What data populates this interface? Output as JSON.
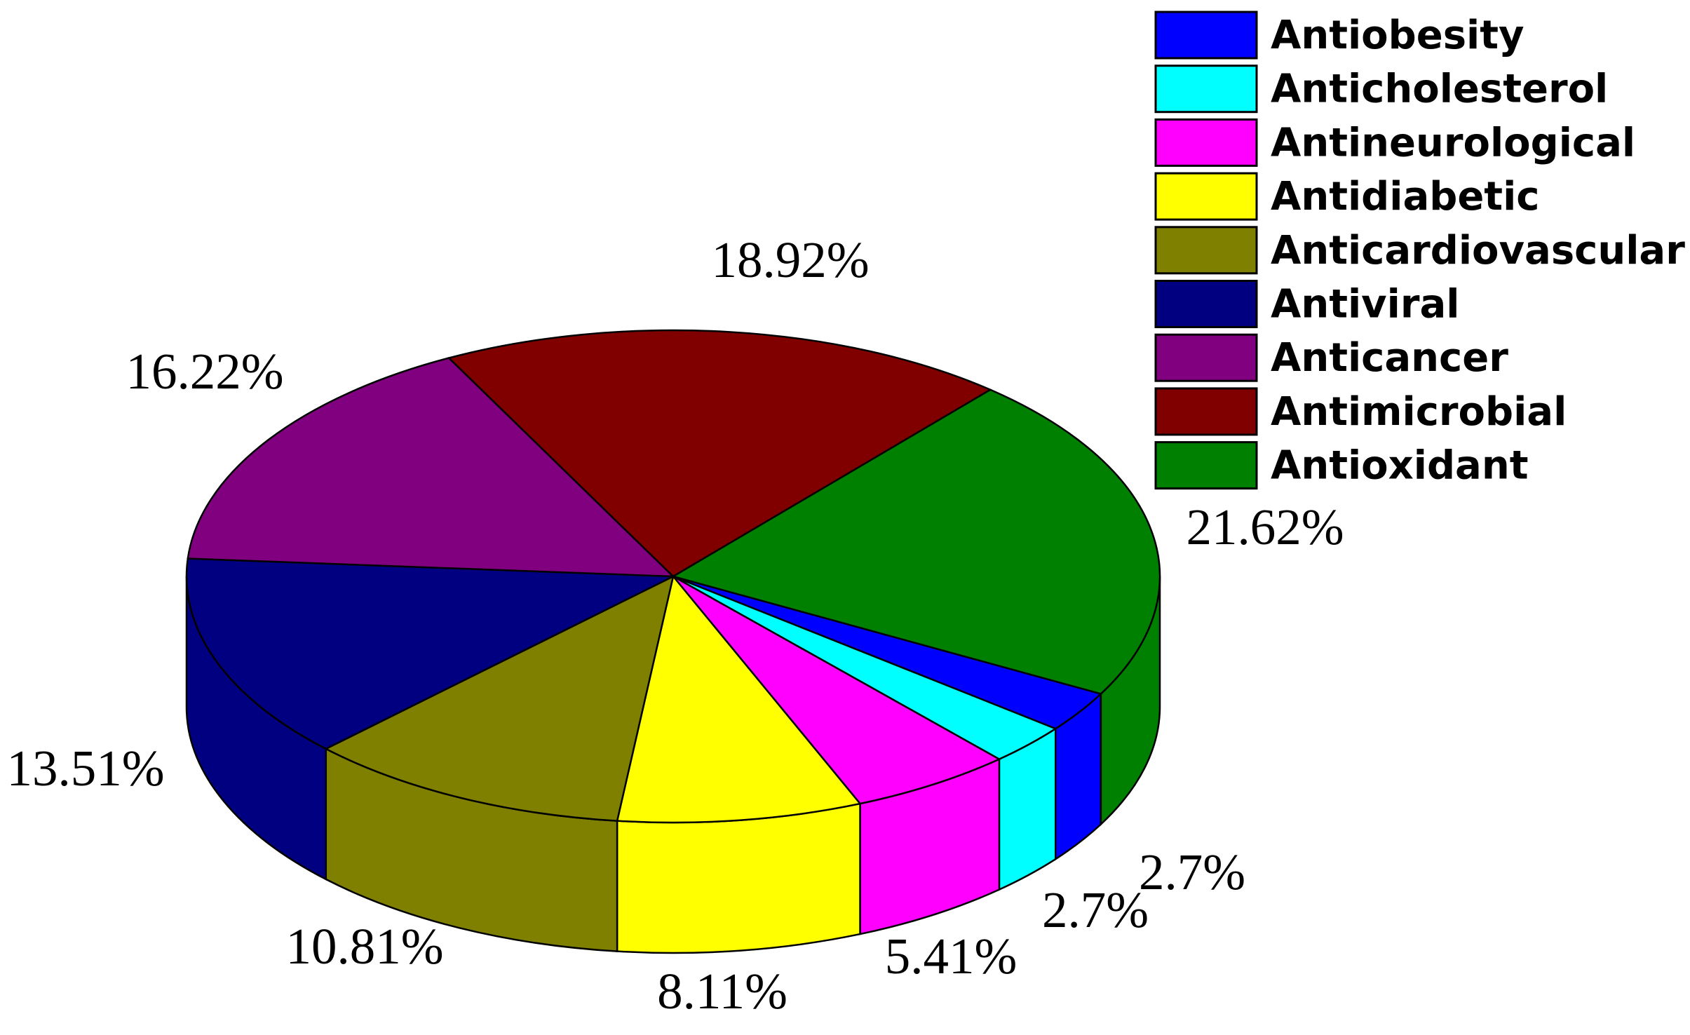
{
  "chart_data": {
    "type": "pie",
    "style": "3d-pie",
    "legend_position": "top-right",
    "slices": [
      {
        "label": "Antiobesity",
        "value": 2.7,
        "display": "2.7%",
        "color": "#0000FF"
      },
      {
        "label": "Anticholesterol",
        "value": 2.7,
        "display": "2.7%",
        "color": "#00FFFF"
      },
      {
        "label": "Antineurological",
        "value": 5.41,
        "display": "5.41%",
        "color": "#FF00FF"
      },
      {
        "label": "Antidiabetic",
        "value": 8.11,
        "display": "8.11%",
        "color": "#FFFF00"
      },
      {
        "label": "Anticardiovascular",
        "value": 10.81,
        "display": "10.81%",
        "color": "#808000"
      },
      {
        "label": "Antiviral",
        "value": 13.51,
        "display": "13.51%",
        "color": "#000080"
      },
      {
        "label": "Anticancer",
        "value": 16.22,
        "display": "16.22%",
        "color": "#800080"
      },
      {
        "label": "Antimicrobial",
        "value": 18.92,
        "display": "18.92%",
        "color": "#800000"
      },
      {
        "label": "Antioxidant",
        "value": 21.62,
        "display": "21.62%",
        "color": "#008000"
      }
    ]
  }
}
